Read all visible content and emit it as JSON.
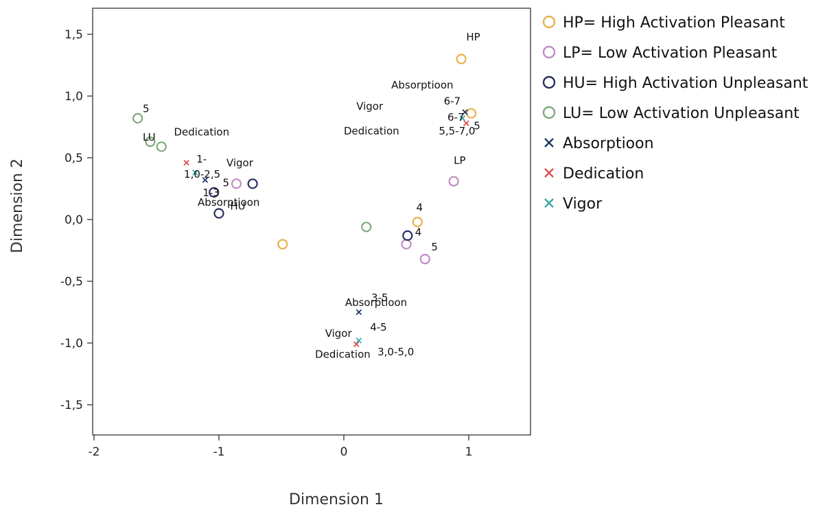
{
  "chart_data": {
    "type": "scatter",
    "xlabel": "Dimension 1",
    "ylabel": "Dimension 2",
    "xlim": [
      -2,
      1.5
    ],
    "ylim": [
      -1.75,
      1.7
    ],
    "xticks": [
      "-2",
      "-1",
      "0",
      "1"
    ],
    "xtick_values": [
      -2,
      -1,
      0,
      1
    ],
    "yticks": [
      "1,5",
      "1,0",
      "0,5",
      "0,0",
      "-0,5",
      "-1,0",
      "-1,5"
    ],
    "ytick_values": [
      1.5,
      1.0,
      0.5,
      0.0,
      -0.5,
      -1.0,
      -1.5
    ],
    "grid": false,
    "legend_position": "right",
    "series": [
      {
        "name": "HP= High Activation Pleasant",
        "marker": "circle",
        "color": "#E8B04B",
        "points": [
          [
            0.94,
            1.3
          ],
          [
            1.02,
            0.86
          ],
          [
            0.59,
            -0.02
          ],
          [
            -0.49,
            -0.2
          ]
        ]
      },
      {
        "name": "LP= Low Activation Pleasant",
        "marker": "circle",
        "color": "#C08CC4",
        "points": [
          [
            0.88,
            0.31
          ],
          [
            0.5,
            -0.2
          ],
          [
            0.65,
            -0.32
          ],
          [
            -0.86,
            0.29
          ]
        ]
      },
      {
        "name": "HU= High Activation Unpleasant",
        "marker": "circle",
        "color": "#2A2E63",
        "points": [
          [
            -1.04,
            0.22
          ],
          [
            -1.0,
            0.05
          ],
          [
            -0.73,
            0.29
          ],
          [
            0.51,
            -0.13
          ]
        ]
      },
      {
        "name": "LU= Low Activation Unpleasant",
        "marker": "circle",
        "color": "#7FA97F",
        "points": [
          [
            -1.65,
            0.82
          ],
          [
            -1.55,
            0.63
          ],
          [
            -1.46,
            0.59
          ],
          [
            0.18,
            -0.06
          ]
        ]
      },
      {
        "name": "Absorptioon",
        "marker": "x",
        "color": "#1F3A63",
        "points": [
          [
            -1.11,
            0.32
          ],
          [
            0.12,
            -0.75
          ],
          [
            0.97,
            0.87
          ]
        ]
      },
      {
        "name": "Dedication",
        "marker": "x",
        "color": "#E04B4B",
        "points": [
          [
            -1.26,
            0.46
          ],
          [
            0.1,
            -1.01
          ],
          [
            0.98,
            0.78
          ]
        ]
      },
      {
        "name": "Vigor",
        "marker": "x",
        "color": "#3AA7A7",
        "points": [
          [
            -1.19,
            0.38
          ],
          [
            0.12,
            -0.98
          ],
          [
            0.95,
            0.82
          ]
        ]
      }
    ],
    "annotations": [
      {
        "text": "HP",
        "x": 0.98,
        "y": 1.45
      },
      {
        "text": "Absorptioon",
        "x": 0.38,
        "y": 1.06
      },
      {
        "text": "Vigor",
        "x": 0.1,
        "y": 0.89
      },
      {
        "text": "Dedication",
        "x": 0.0,
        "y": 0.69
      },
      {
        "text": "6-7",
        "x": 0.8,
        "y": 0.93
      },
      {
        "text": "6-7",
        "x": 0.83,
        "y": 0.8
      },
      {
        "text": "5",
        "x": 1.04,
        "y": 0.73
      },
      {
        "text": "5,5-7,0",
        "x": 0.76,
        "y": 0.69
      },
      {
        "text": "LP",
        "x": 0.88,
        "y": 0.45
      },
      {
        "text": "4",
        "x": 0.58,
        "y": 0.07
      },
      {
        "text": "4",
        "x": 0.57,
        "y": -0.13
      },
      {
        "text": "5",
        "x": 0.7,
        "y": -0.25
      },
      {
        "text": "5",
        "x": -1.61,
        "y": 0.87
      },
      {
        "text": "LU",
        "x": -1.61,
        "y": 0.64
      },
      {
        "text": "Dedication",
        "x": -1.36,
        "y": 0.68
      },
      {
        "text": "1-",
        "x": -1.18,
        "y": 0.46
      },
      {
        "text": "1,0-2,5",
        "x": -1.28,
        "y": 0.34
      },
      {
        "text": "Vigor",
        "x": -0.94,
        "y": 0.43
      },
      {
        "text": "5",
        "x": -0.97,
        "y": 0.27
      },
      {
        "text": "1-3",
        "x": -1.13,
        "y": 0.19
      },
      {
        "text": "Absorptioon",
        "x": -1.17,
        "y": 0.11
      },
      {
        "text": "HU",
        "x": -0.91,
        "y": 0.08
      },
      {
        "text": "Absorptioon",
        "x": 0.01,
        "y": -0.7
      },
      {
        "text": "3-5",
        "x": 0.22,
        "y": -0.66
      },
      {
        "text": "Vigor",
        "x": -0.15,
        "y": -0.95
      },
      {
        "text": "4-5",
        "x": 0.21,
        "y": -0.9
      },
      {
        "text": "Dedication",
        "x": -0.23,
        "y": -1.12
      },
      {
        "text": "3,0-5,0",
        "x": 0.27,
        "y": -1.1
      }
    ]
  }
}
